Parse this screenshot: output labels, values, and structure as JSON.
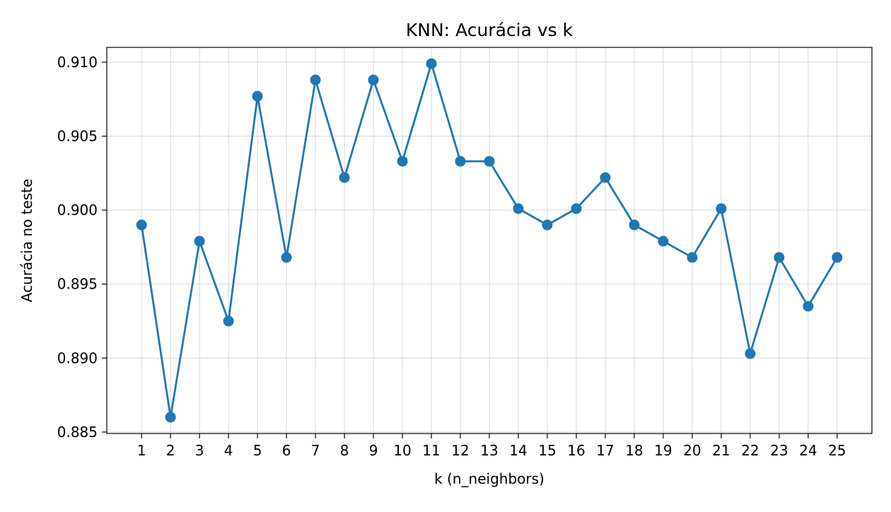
{
  "chart_data": {
    "type": "line",
    "title": "KNN: Acurácia vs k",
    "xlabel": "k (n_neighbors)",
    "ylabel": "Acurácia no teste",
    "x": [
      1,
      2,
      3,
      4,
      5,
      6,
      7,
      8,
      9,
      10,
      11,
      12,
      13,
      14,
      15,
      16,
      17,
      18,
      19,
      20,
      21,
      22,
      23,
      24,
      25
    ],
    "series": [
      {
        "values": [
          0.899,
          0.886,
          0.8979,
          0.8925,
          0.9077,
          0.8968,
          0.9088,
          0.9022,
          0.9088,
          0.9033,
          0.9099,
          0.9033,
          0.9033,
          0.9001,
          0.899,
          0.9001,
          0.9022,
          0.899,
          0.8979,
          0.8968,
          0.9001,
          0.8903,
          0.8968,
          0.8935,
          0.8968
        ],
        "color": "#1f77b4",
        "marker": "circle"
      }
    ],
    "xticks": [
      "1",
      "2",
      "3",
      "4",
      "5",
      "6",
      "7",
      "8",
      "9",
      "10",
      "11",
      "12",
      "13",
      "14",
      "15",
      "16",
      "17",
      "18",
      "19",
      "20",
      "21",
      "22",
      "23",
      "24",
      "25"
    ],
    "yticks": [
      "0.885",
      "0.890",
      "0.895",
      "0.900",
      "0.905",
      "0.910"
    ],
    "xlim": [
      -0.2,
      26.2
    ],
    "ylim": [
      0.8849,
      0.911
    ],
    "grid": true,
    "legend": "none"
  }
}
